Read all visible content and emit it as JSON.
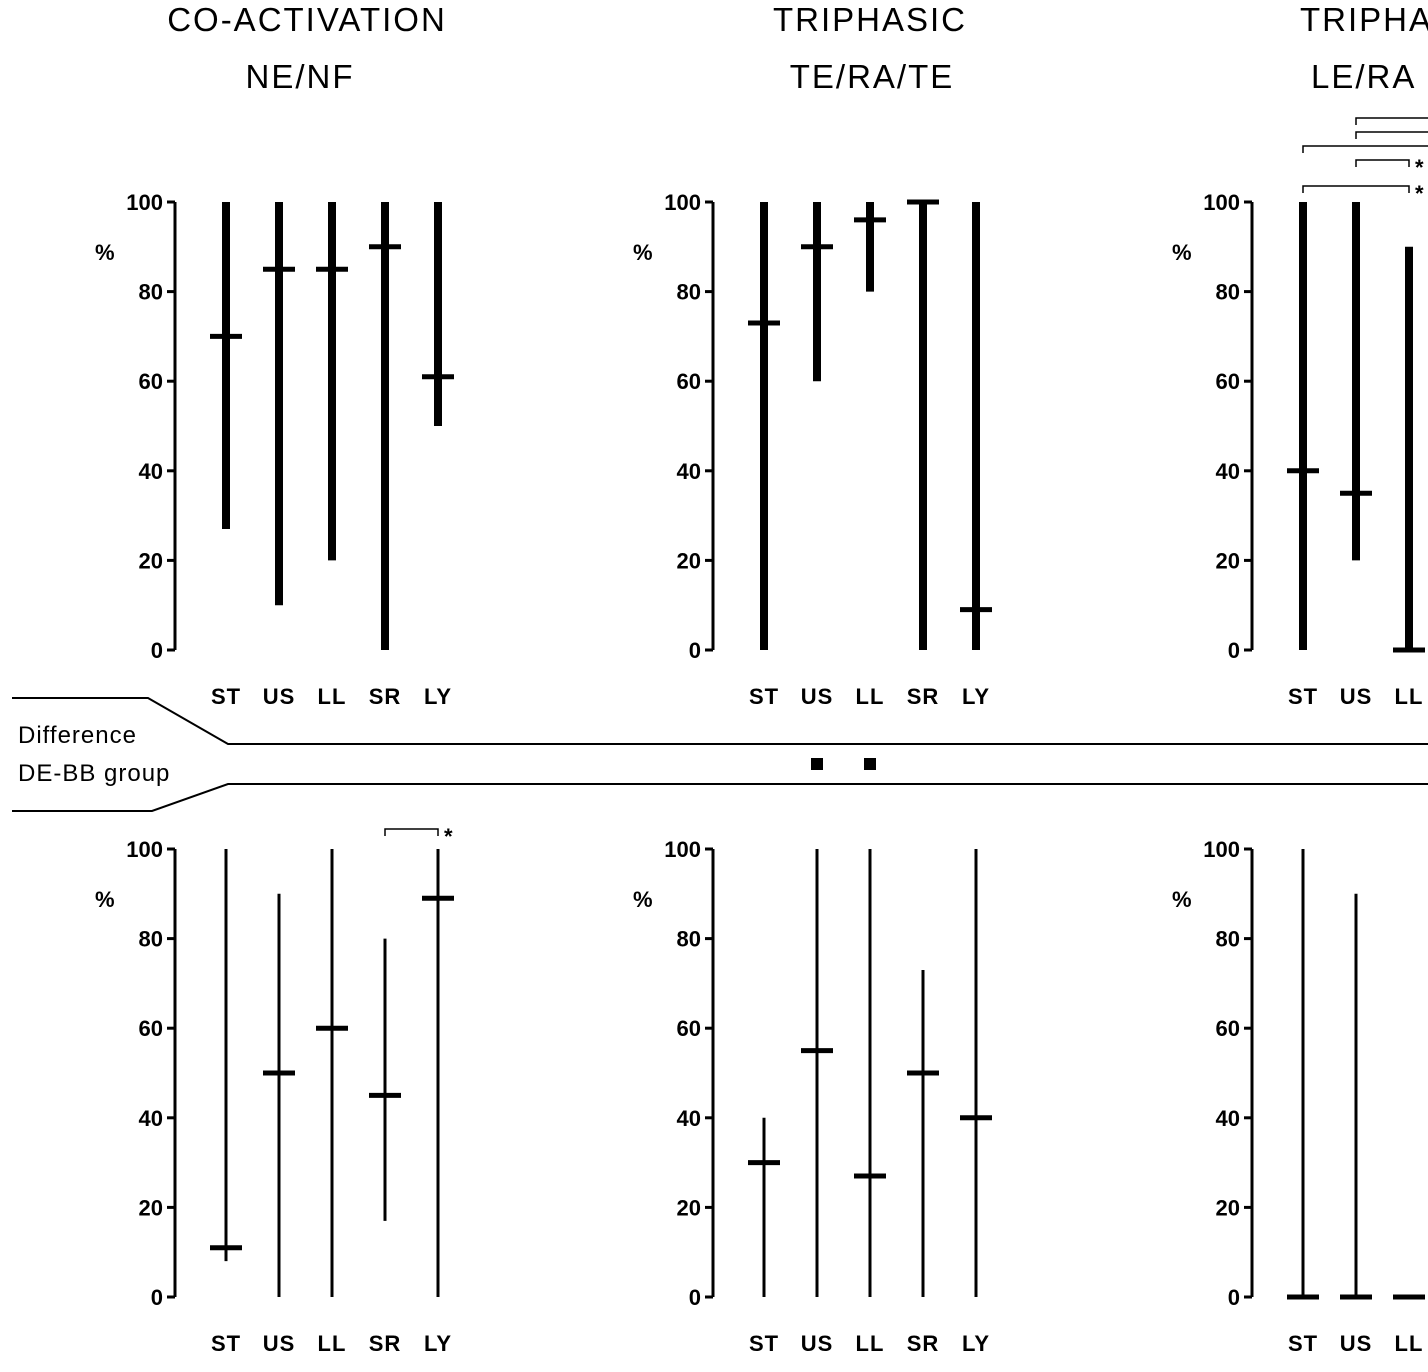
{
  "titles": [
    {
      "line1": "CO-ACTIVATION",
      "line2": "NE/NF"
    },
    {
      "line1": "TRIPHASIC",
      "line2": "TE/RA/TE"
    },
    {
      "line1": "TRIPHASIC",
      "line2": "LE/RA"
    }
  ],
  "difference_label": {
    "line1": "Difference",
    "line2": "DE-BB group"
  },
  "difference_marks": {
    "panel": 1,
    "categories": [
      "US",
      "LL"
    ]
  },
  "chart_data": [
    {
      "type": "range-median",
      "row": "top",
      "panel": 0,
      "ylabel": "%",
      "ylim": [
        0,
        100
      ],
      "yticks": [
        0,
        20,
        40,
        60,
        80,
        100
      ],
      "categories": [
        "ST",
        "US",
        "LL",
        "SR",
        "LY"
      ],
      "min": [
        27,
        10,
        20,
        0,
        50
      ],
      "max": [
        100,
        100,
        100,
        100,
        100
      ],
      "median": [
        70,
        85,
        85,
        90,
        61
      ],
      "significance": []
    },
    {
      "type": "range-median",
      "row": "top",
      "panel": 1,
      "ylabel": "%",
      "ylim": [
        0,
        100
      ],
      "yticks": [
        0,
        20,
        40,
        60,
        80,
        100
      ],
      "categories": [
        "ST",
        "US",
        "LL",
        "SR",
        "LY"
      ],
      "min": [
        0,
        60,
        80,
        0,
        0
      ],
      "max": [
        100,
        100,
        100,
        100,
        100
      ],
      "median": [
        73,
        90,
        96,
        100,
        9
      ],
      "significance": []
    },
    {
      "type": "range-median",
      "row": "top",
      "panel": 2,
      "ylabel": "%",
      "ylim": [
        0,
        100
      ],
      "yticks": [
        0,
        20,
        40,
        60,
        80,
        100
      ],
      "categories": [
        "ST",
        "US",
        "LL"
      ],
      "min": [
        0,
        20,
        0
      ],
      "max": [
        100,
        100,
        90
      ],
      "median": [
        40,
        35,
        0
      ],
      "significance": [
        {
          "from": "ST",
          "to": "LL",
          "label": "*"
        },
        {
          "from": "US",
          "to": "LL",
          "label": "*"
        },
        {
          "from": "ST",
          "to": null,
          "label": ""
        },
        {
          "from": "US",
          "to": null,
          "label": ""
        },
        {
          "from": "US",
          "to": null,
          "label": ""
        }
      ]
    },
    {
      "type": "range-median",
      "row": "bottom",
      "panel": 0,
      "ylabel": "%",
      "ylim": [
        0,
        100
      ],
      "yticks": [
        0,
        20,
        40,
        60,
        80,
        100
      ],
      "categories": [
        "ST",
        "US",
        "LL",
        "SR",
        "LY"
      ],
      "min": [
        8,
        0,
        0,
        17,
        0
      ],
      "max": [
        100,
        90,
        100,
        80,
        100
      ],
      "median": [
        11,
        50,
        60,
        45,
        89
      ],
      "significance": [
        {
          "from": "SR",
          "to": "LY",
          "label": "*"
        }
      ]
    },
    {
      "type": "range-median",
      "row": "bottom",
      "panel": 1,
      "ylabel": "%",
      "ylim": [
        0,
        100
      ],
      "yticks": [
        0,
        20,
        40,
        60,
        80,
        100
      ],
      "categories": [
        "ST",
        "US",
        "LL",
        "SR",
        "LY"
      ],
      "min": [
        0,
        0,
        0,
        0,
        0
      ],
      "max": [
        40,
        100,
        100,
        73,
        100
      ],
      "median": [
        30,
        55,
        27,
        50,
        40
      ],
      "significance": []
    },
    {
      "type": "range-median",
      "row": "bottom",
      "panel": 2,
      "ylabel": "%",
      "ylim": [
        0,
        100
      ],
      "yticks": [
        0,
        20,
        40,
        60,
        80,
        100
      ],
      "categories": [
        "ST",
        "US",
        "LL"
      ],
      "min": [
        0,
        0,
        0
      ],
      "max": [
        100,
        90,
        0
      ],
      "median": [
        0,
        0,
        0
      ],
      "significance": []
    }
  ]
}
